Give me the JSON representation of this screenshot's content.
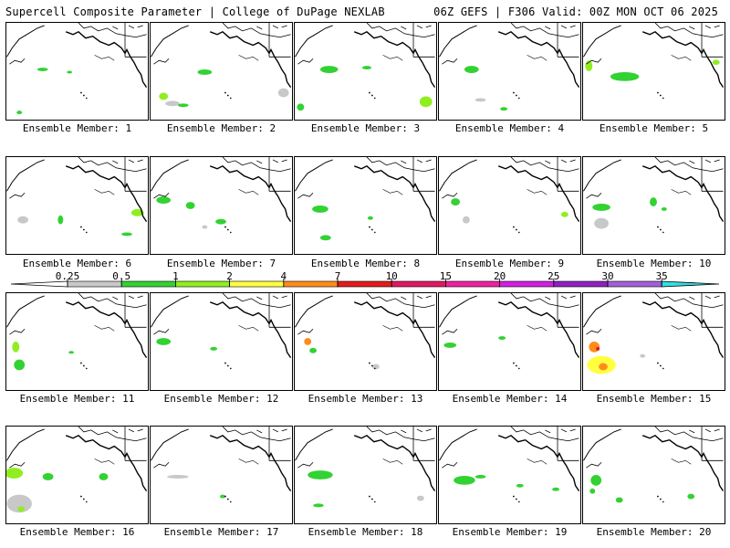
{
  "header": {
    "left": "Supercell Composite Parameter | College of DuPage NEXLAB",
    "right": "06Z GEFS | F306 Valid: 00Z MON OCT 06 2025"
  },
  "colorbar": {
    "ticks": [
      "0.25",
      "0.5",
      "1",
      "2",
      "4",
      "7",
      "10",
      "15",
      "20",
      "25",
      "30",
      "35"
    ],
    "colors": [
      "#c8c8c8",
      "#32d232",
      "#90ee20",
      "#ffff40",
      "#ff8c1a",
      "#e31a1c",
      "#e01860",
      "#f020a0",
      "#d020e0",
      "#9020c0",
      "#a060d8",
      "#30e0e0"
    ]
  },
  "members": [
    {
      "label": "Ensemble Member: 1"
    },
    {
      "label": "Ensemble Member: 2"
    },
    {
      "label": "Ensemble Member: 3"
    },
    {
      "label": "Ensemble Member: 4"
    },
    {
      "label": "Ensemble Member: 5"
    },
    {
      "label": "Ensemble Member: 6"
    },
    {
      "label": "Ensemble Member: 7"
    },
    {
      "label": "Ensemble Member: 8"
    },
    {
      "label": "Ensemble Member: 9"
    },
    {
      "label": "Ensemble Member: 10"
    },
    {
      "label": "Ensemble Member: 11"
    },
    {
      "label": "Ensemble Member: 12"
    },
    {
      "label": "Ensemble Member: 13"
    },
    {
      "label": "Ensemble Member: 14"
    },
    {
      "label": "Ensemble Member: 15"
    },
    {
      "label": "Ensemble Member: 16"
    },
    {
      "label": "Ensemble Member: 17"
    },
    {
      "label": "Ensemble Member: 18"
    },
    {
      "label": "Ensemble Member: 19"
    },
    {
      "label": "Ensemble Member: 20"
    }
  ]
}
